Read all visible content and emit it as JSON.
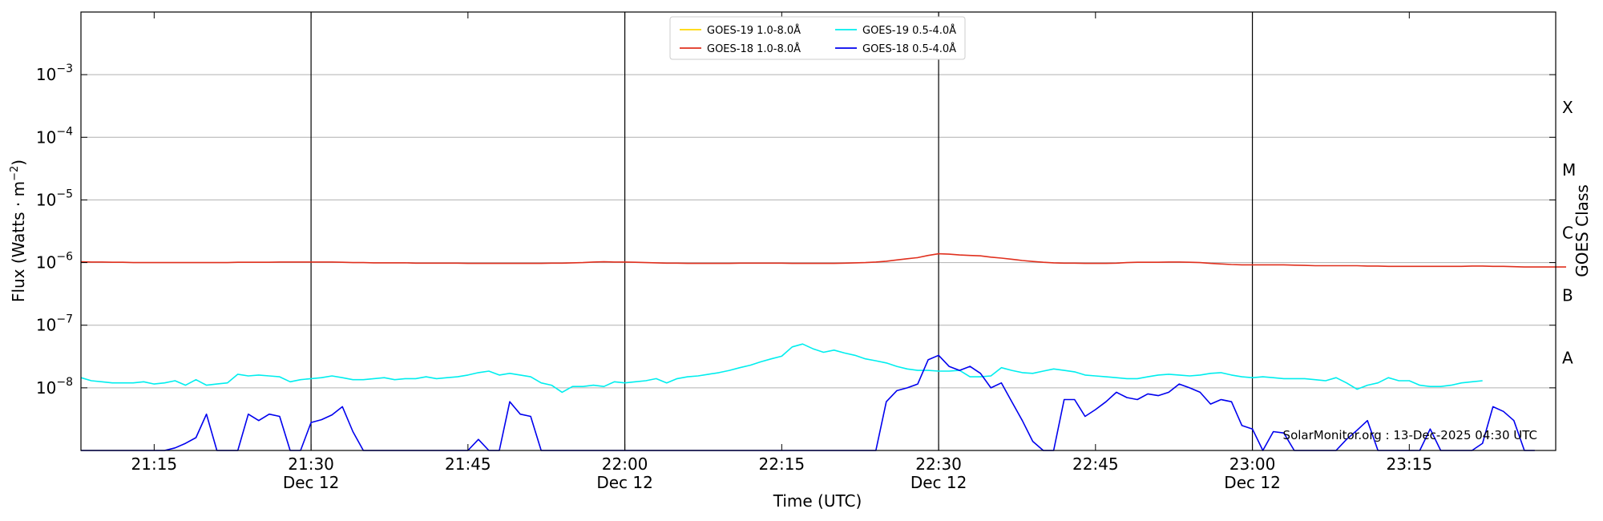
{
  "chart_data": {
    "type": "line",
    "title": "",
    "xlabel": "Time (UTC)",
    "ylabel": "Flux (Watts · m",
    "ylabel_sup": "−2",
    "ylabel_close": ")",
    "y2label": "GOES Class",
    "yscale": "log",
    "ylim": [
      1e-09,
      0.01
    ],
    "xlim": [
      "21:08",
      "23:29"
    ],
    "y_ticks": [
      {
        "value": 1e-08,
        "base": "10",
        "exp": "−8"
      },
      {
        "value": 1e-07,
        "base": "10",
        "exp": "−7"
      },
      {
        "value": 1e-06,
        "base": "10",
        "exp": "−6"
      },
      {
        "value": 1e-05,
        "base": "10",
        "exp": "−5"
      },
      {
        "value": 0.0001,
        "base": "10",
        "exp": "−4"
      },
      {
        "value": 0.001,
        "base": "10",
        "exp": "−3"
      }
    ],
    "x_ticks": [
      {
        "time": "21:15",
        "label": "21:15",
        "date": ""
      },
      {
        "time": "21:30",
        "label": "21:30",
        "date": "Dec 12"
      },
      {
        "time": "21:45",
        "label": "21:45",
        "date": ""
      },
      {
        "time": "22:00",
        "label": "22:00",
        "date": "Dec 12"
      },
      {
        "time": "22:15",
        "label": "22:15",
        "date": ""
      },
      {
        "time": "22:30",
        "label": "22:30",
        "date": "Dec 12"
      },
      {
        "time": "22:45",
        "label": "22:45",
        "date": ""
      },
      {
        "time": "23:00",
        "label": "23:00",
        "date": "Dec 12"
      },
      {
        "time": "23:15",
        "label": "23:15",
        "date": ""
      }
    ],
    "vertical_lines": [
      "21:30",
      "22:00",
      "22:30",
      "23:00"
    ],
    "goes_classes": [
      {
        "label": "X",
        "value": 0.0003
      },
      {
        "label": "M",
        "value": 3e-05
      },
      {
        "label": "C",
        "value": 3e-06
      },
      {
        "label": "B",
        "value": 3e-07
      },
      {
        "label": "A",
        "value": 3e-08
      }
    ],
    "grid": "horizontal",
    "legend_position": "top-center",
    "annotation": "SolarMonitor.org : 13-Dec-2025 04:30 UTC",
    "x_start": "21:08",
    "x_step_minutes": 1,
    "series": [
      {
        "name": "GOES-19 1.0-8.0Å",
        "color": "#FFD700",
        "values": []
      },
      {
        "name": "GOES-18 1.0-8.0Å",
        "color": "#E0301E",
        "values": [
          1.03e-06,
          1.02e-06,
          1.02e-06,
          1.01e-06,
          1.01e-06,
          1e-06,
          1e-06,
          1e-06,
          1e-06,
          1e-06,
          1e-06,
          1e-06,
          1e-06,
          1e-06,
          1e-06,
          1.01e-06,
          1.01e-06,
          1.01e-06,
          1.01e-06,
          1.02e-06,
          1.02e-06,
          1.02e-06,
          1.02e-06,
          1.02e-06,
          1.02e-06,
          1.01e-06,
          1e-06,
          1e-06,
          9.9e-07,
          9.9e-07,
          9.9e-07,
          9.9e-07,
          9.8e-07,
          9.8e-07,
          9.8e-07,
          9.8e-07,
          9.8e-07,
          9.7e-07,
          9.7e-07,
          9.7e-07,
          9.7e-07,
          9.7e-07,
          9.7e-07,
          9.7e-07,
          9.7e-07,
          9.8e-07,
          9.8e-07,
          9.9e-07,
          1e-06,
          1.02e-06,
          1.03e-06,
          1.02e-06,
          1.02e-06,
          1.01e-06,
          1e-06,
          9.9e-07,
          9.8e-07,
          9.8e-07,
          9.7e-07,
          9.7e-07,
          9.7e-07,
          9.7e-07,
          9.7e-07,
          9.8e-07,
          9.8e-07,
          9.8e-07,
          9.8e-07,
          9.8e-07,
          9.7e-07,
          9.7e-07,
          9.7e-07,
          9.7e-07,
          9.7e-07,
          9.8e-07,
          9.9e-07,
          1e-06,
          1.02e-06,
          1.05e-06,
          1.1e-06,
          1.15e-06,
          1.2e-06,
          1.3e-06,
          1.38e-06,
          1.36e-06,
          1.32e-06,
          1.3e-06,
          1.28e-06,
          1.22e-06,
          1.18e-06,
          1.13e-06,
          1.08e-06,
          1.04e-06,
          1.01e-06,
          9.9e-07,
          9.8e-07,
          9.8e-07,
          9.7e-07,
          9.7e-07,
          9.7e-07,
          9.8e-07,
          1e-06,
          1.01e-06,
          1.01e-06,
          1.01e-06,
          1.02e-06,
          1.02e-06,
          1.01e-06,
          1e-06,
          9.7e-07,
          9.5e-07,
          9.3e-07,
          9.2e-07,
          9.2e-07,
          9.2e-07,
          9.2e-07,
          9.2e-07,
          9.1e-07,
          9e-07,
          8.9e-07,
          8.9e-07,
          8.9e-07,
          8.9e-07,
          8.9e-07,
          8.8e-07,
          8.8e-07,
          8.7e-07,
          8.7e-07,
          8.7e-07,
          8.7e-07,
          8.7e-07,
          8.7e-07,
          8.7e-07,
          8.7e-07,
          8.8e-07,
          8.8e-07,
          8.7e-07,
          8.7e-07,
          8.6e-07,
          8.5e-07,
          8.5e-07,
          8.5e-07,
          8.5e-07,
          8.5e-07
        ]
      },
      {
        "name": "GOES-19 0.5-4.0Å",
        "color": "#00EEEE",
        "values": [
          1.45e-08,
          1.3e-08,
          1.25e-08,
          1.2e-08,
          1.2e-08,
          1.2e-08,
          1.25e-08,
          1.15e-08,
          1.2e-08,
          1.3e-08,
          1.1e-08,
          1.35e-08,
          1.1e-08,
          1.15e-08,
          1.2e-08,
          1.65e-08,
          1.55e-08,
          1.6e-08,
          1.55e-08,
          1.5e-08,
          1.25e-08,
          1.35e-08,
          1.4e-08,
          1.45e-08,
          1.55e-08,
          1.45e-08,
          1.35e-08,
          1.35e-08,
          1.4e-08,
          1.45e-08,
          1.35e-08,
          1.4e-08,
          1.4e-08,
          1.5e-08,
          1.4e-08,
          1.45e-08,
          1.5e-08,
          1.6e-08,
          1.75e-08,
          1.85e-08,
          1.6e-08,
          1.7e-08,
          1.6e-08,
          1.5e-08,
          1.2e-08,
          1.1e-08,
          8.5e-09,
          1.05e-08,
          1.05e-08,
          1.1e-08,
          1.05e-08,
          1.25e-08,
          1.2e-08,
          1.25e-08,
          1.3e-08,
          1.4e-08,
          1.2e-08,
          1.4e-08,
          1.5e-08,
          1.55e-08,
          1.65e-08,
          1.75e-08,
          1.9e-08,
          2.1e-08,
          2.3e-08,
          2.6e-08,
          2.9e-08,
          3.2e-08,
          4.5e-08,
          5e-08,
          4.2e-08,
          3.7e-08,
          4e-08,
          3.6e-08,
          3.3e-08,
          2.9e-08,
          2.7e-08,
          2.5e-08,
          2.2e-08,
          2e-08,
          1.9e-08,
          1.9e-08,
          1.85e-08,
          1.85e-08,
          1.9e-08,
          1.5e-08,
          1.5e-08,
          1.55e-08,
          2.1e-08,
          1.9e-08,
          1.75e-08,
          1.7e-08,
          1.85e-08,
          2e-08,
          1.9e-08,
          1.8e-08,
          1.6e-08,
          1.55e-08,
          1.5e-08,
          1.45e-08,
          1.4e-08,
          1.4e-08,
          1.5e-08,
          1.6e-08,
          1.65e-08,
          1.6e-08,
          1.55e-08,
          1.6e-08,
          1.7e-08,
          1.75e-08,
          1.6e-08,
          1.5e-08,
          1.45e-08,
          1.5e-08,
          1.45e-08,
          1.4e-08,
          1.4e-08,
          1.4e-08,
          1.35e-08,
          1.3e-08,
          1.45e-08,
          1.2e-08,
          9.5e-09,
          1.1e-08,
          1.2e-08,
          1.45e-08,
          1.3e-08,
          1.3e-08,
          1.1e-08,
          1.05e-08,
          1.05e-08,
          1.1e-08,
          1.2e-08,
          1.25e-08,
          1.3e-08
        ]
      },
      {
        "name": "GOES-18 0.5-4.0Å",
        "color": "#0000EE",
        "values": [
          1e-09,
          1e-09,
          1e-09,
          1e-09,
          1e-09,
          1e-09,
          1e-09,
          1e-09,
          1e-09,
          1.1e-09,
          1.3e-09,
          1.6e-09,
          3.8e-09,
          1e-09,
          1e-09,
          1e-09,
          3.8e-09,
          3e-09,
          3.8e-09,
          3.5e-09,
          1e-09,
          1e-09,
          2.8e-09,
          3.1e-09,
          3.7e-09,
          5e-09,
          2e-09,
          1e-09,
          1e-09,
          1e-09,
          1e-09,
          1e-09,
          1e-09,
          1e-09,
          1e-09,
          1e-09,
          1e-09,
          1e-09,
          1.5e-09,
          1e-09,
          1e-09,
          6e-09,
          3.8e-09,
          3.5e-09,
          1e-09,
          1e-09,
          1e-09,
          1e-09,
          1e-09,
          1e-09,
          1e-09,
          1e-09,
          1e-09,
          1e-09,
          1e-09,
          1e-09,
          1e-09,
          1e-09,
          1e-09,
          1e-09,
          1e-09,
          1e-09,
          1e-09,
          1e-09,
          1e-09,
          1e-09,
          1e-09,
          1e-09,
          1e-09,
          1e-09,
          1e-09,
          1e-09,
          1e-09,
          1e-09,
          1e-09,
          1e-09,
          1e-09,
          6e-09,
          9e-09,
          1e-08,
          1.15e-08,
          2.8e-08,
          3.3e-08,
          2.2e-08,
          1.9e-08,
          2.2e-08,
          1.7e-08,
          1e-08,
          1.2e-08,
          6e-09,
          3e-09,
          1.4e-09,
          1e-09,
          1e-09,
          6.5e-09,
          6.5e-09,
          3.5e-09,
          4.5e-09,
          6e-09,
          8.5e-09,
          7e-09,
          6.5e-09,
          8e-09,
          7.5e-09,
          8.5e-09,
          1.15e-08,
          1e-08,
          8.5e-09,
          5.5e-09,
          6.5e-09,
          6e-09,
          2.5e-09,
          2.2e-09,
          1e-09,
          2e-09,
          1.9e-09,
          1e-09,
          1e-09,
          1e-09,
          1e-09,
          1e-09,
          1.5e-09,
          2.1e-09,
          3e-09,
          1e-09,
          1e-09,
          1e-09,
          1e-09,
          1e-09,
          2.2e-09,
          1e-09,
          1e-09,
          1e-09,
          1e-09,
          1.3e-09,
          5e-09,
          4.2e-09,
          3e-09,
          1e-09,
          1e-09
        ]
      }
    ]
  }
}
